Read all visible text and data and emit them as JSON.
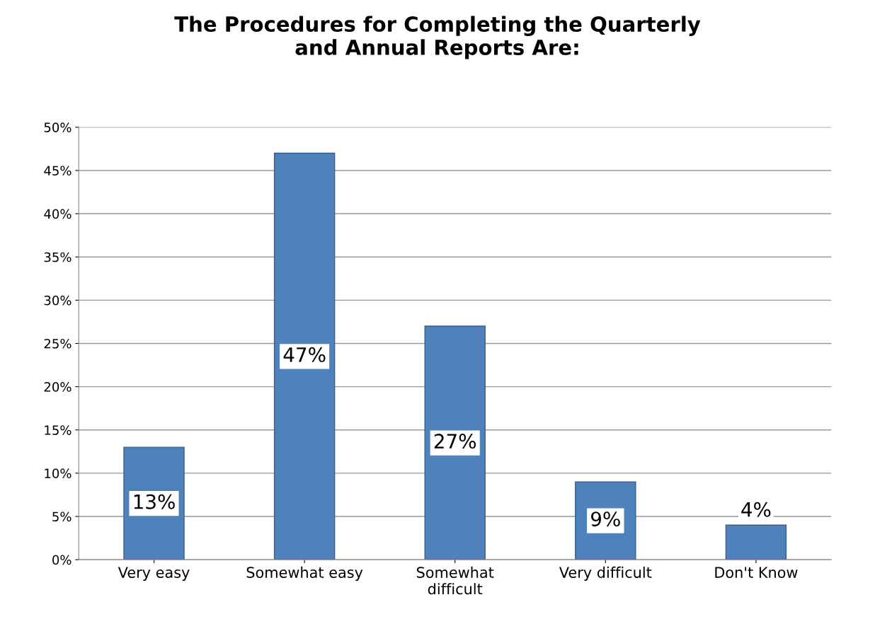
{
  "chart_data": {
    "type": "bar",
    "title": "The Procedures for Completing the Quarterly\nand Annual Reports Are:",
    "categories": [
      "Very easy",
      "Somewhat easy",
      "Somewhat\ndifficult",
      "Very difficult",
      "Don't Know"
    ],
    "values": [
      13,
      47,
      27,
      9,
      4
    ],
    "color": "#4f81bd",
    "value_labels": [
      "13%",
      "47%",
      "27%",
      "9%",
      "4%"
    ],
    "ylim": [
      0,
      50
    ],
    "yticks": [
      {
        "value": 0,
        "label": "0%"
      },
      {
        "value": 5,
        "label": "5%"
      },
      {
        "value": 10,
        "label": "10%"
      },
      {
        "value": 15,
        "label": "15%"
      },
      {
        "value": 20,
        "label": "20%"
      },
      {
        "value": 25,
        "label": "25%"
      },
      {
        "value": 30,
        "label": "30%"
      },
      {
        "value": 35,
        "label": "35%"
      },
      {
        "value": 40,
        "label": "40%"
      },
      {
        "value": 45,
        "label": "45%"
      },
      {
        "value": 50,
        "label": "50%"
      }
    ],
    "grid": "y",
    "legend": false
  }
}
